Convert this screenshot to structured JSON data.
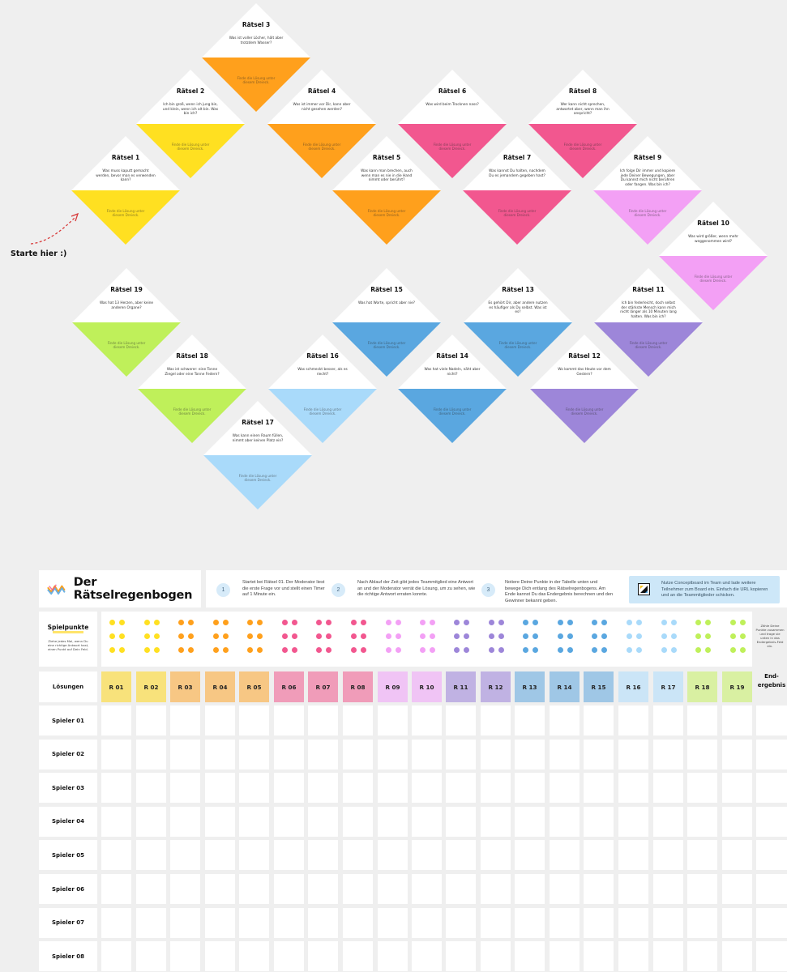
{
  "puzzles": [
    {
      "title": "Rätsel 1",
      "question": "Was muss kaputt gemacht werden, bevor man es verwenden kann?",
      "hint": "Finde die Lösung unter diesem Dreieck.",
      "color": "#ffe021"
    },
    {
      "title": "Rätsel 2",
      "question": "Ich bin groß, wenn ich jung bin, und klein, wenn ich alt bin. Was bin ich?",
      "hint": "Finde die Lösung unter diesem Dreieck.",
      "color": "#ffe021"
    },
    {
      "title": "Rätsel 3",
      "question": "Was ist voller Löcher, hält aber trotzdem Wasser?",
      "hint": "Finde die Lösung unter diesem Dreieck.",
      "color": "#ffa01c"
    },
    {
      "title": "Rätsel 4",
      "question": "Was ist immer vor Dir, kann aber nicht gesehen werden?",
      "hint": "Finde die Lösung unter diesem Dreieck.",
      "color": "#ffa01c"
    },
    {
      "title": "Rätsel 5",
      "question": "Was kann man brechen, auch wenn man es nie in die Hand nimmt oder berührt?",
      "hint": "Finde die Lösung unter diesem Dreieck.",
      "color": "#ffa01c"
    },
    {
      "title": "Rätsel 6",
      "question": "Was wird beim Trocknen nass?",
      "hint": "Finde die Lösung unter diesem Dreieck.",
      "color": "#f2578f"
    },
    {
      "title": "Rätsel 7",
      "question": "Was kannst Du halten, nachdem Du es jemandem gegeben hast?",
      "hint": "Finde die Lösung unter diesem Dreieck.",
      "color": "#f2578f"
    },
    {
      "title": "Rätsel 8",
      "question": "Wer kann nicht sprechen, antwortet aber, wenn man ihn anspricht?",
      "hint": "Finde die Lösung unter diesem Dreieck.",
      "color": "#f2578f"
    },
    {
      "title": "Rätsel 9",
      "question": "Ich folge Dir immer und kopiere jede Deiner Bewegungen, aber Du kannst mich nicht berühren oder fangen. Was bin ich?",
      "hint": "Finde die Lösung unter diesem Dreieck.",
      "color": "#f3a0f5"
    },
    {
      "title": "Rätsel 10",
      "question": "Was wird größer, wenn mehr weggenommen wird?",
      "hint": "Finde die Lösung unter diesem Dreieck.",
      "color": "#f3a0f5"
    },
    {
      "title": "Rätsel 11",
      "question": "Ich bin federleicht, doch selbst der stärkste Mensch kann mich nicht länger als 10 Minuten lang halten. Was bin ich?",
      "hint": "Finde die Lösung unter diesem Dreieck.",
      "color": "#9d86d9"
    },
    {
      "title": "Rätsel 12",
      "question": "Wo kommt das Heute vor dem Gestern?",
      "hint": "Finde die Lösung unter diesem Dreieck.",
      "color": "#9d86d9"
    },
    {
      "title": "Rätsel 13",
      "question": "Es gehört Dir, aber andere nutzen es häufiger als Du selbst. Was ist es?",
      "hint": "Finde die Lösung unter diesem Dreieck.",
      "color": "#5aa7e0"
    },
    {
      "title": "Rätsel 14",
      "question": "Was hat viele Nadeln, näht aber nicht?",
      "hint": "Finde die Lösung unter diesem Dreieck.",
      "color": "#5aa7e0"
    },
    {
      "title": "Rätsel 15",
      "question": "Was hat Worte, spricht aber nie?",
      "hint": "Finde die Lösung unter diesem Dreieck.",
      "color": "#5aa7e0"
    },
    {
      "title": "Rätsel 16",
      "question": "Was schmeckt besser, als es riecht?",
      "hint": "Finde die Lösung unter diesem Dreieck.",
      "color": "#a9dafa"
    },
    {
      "title": "Rätsel 17",
      "question": "Was kann einen Raum füllen, nimmt aber keinen Platz ein?",
      "hint": "Finde die Lösung unter diesem Dreieck.",
      "color": "#a9dafa"
    },
    {
      "title": "Rätsel 18",
      "question": "Was ist schwerer: eine Tonne Ziegel oder eine Tonne Federn?",
      "hint": "Finde die Lösung unter diesem Dreieck.",
      "color": "#bff05a"
    },
    {
      "title": "Rätsel 19",
      "question": "Was hat 13 Herzen, aber keine anderen Organe?",
      "hint": "Finde die Lösung unter diesem Dreieck.",
      "color": "#bff05a"
    }
  ],
  "start_label": "Starte hier :)",
  "title": "Der Rätselregenbogen",
  "steps": [
    {
      "num": "1",
      "text": "Startet bei Rätsel 01. Der Moderator liest die erste Frage vor und stellt einen Timer auf 1 Minute ein."
    },
    {
      "num": "2",
      "text": "Nach Ablauf der Zeit gibt jedes Teammitglied eine Antwort an und der Moderator verrät die Lösung, um zu sehen, wie die richtige Antwort erraten konnte."
    },
    {
      "num": "3",
      "text": "Notiere Deine Punkte in der Tabelle unten und bewege Dich entlang des Rätselregenbogens. Am Ende kannst Du das Endergebnis berechnen und den Gewinner bekannt geben."
    }
  ],
  "share_text": "Nutze Conceptboard im Team und lade weitere Teilnehmer zum Board ein. Einfach die URL kopieren und an die Teammitglieder schicken.",
  "points": {
    "title": "Spielpunkte",
    "description": "Ziehe jedes Mal, wenn Du eine richtige Antwort hast, einen Punkt auf Dein Feld.",
    "note": "Zähle Deine Punkte zusammen und trage sie unten in das Endergebnis-Feld ein.",
    "colors": [
      "#ffe021",
      "#ffe021",
      "#ffa01c",
      "#ffa01c",
      "#ffa01c",
      "#f2578f",
      "#f2578f",
      "#f2578f",
      "#f3a0f5",
      "#f3a0f5",
      "#9d86d9",
      "#9d86d9",
      "#5aa7e0",
      "#5aa7e0",
      "#5aa7e0",
      "#a9dafa",
      "#a9dafa",
      "#bff05a",
      "#bff05a"
    ]
  },
  "table": {
    "corner_label": "Lösungen",
    "end_label": "End-ergebnis",
    "columns": [
      {
        "label": "R 01",
        "color": "#f8e27b"
      },
      {
        "label": "R 02",
        "color": "#f8e27b"
      },
      {
        "label": "R 03",
        "color": "#f7c784"
      },
      {
        "label": "R 04",
        "color": "#f7c784"
      },
      {
        "label": "R 05",
        "color": "#f7c784"
      },
      {
        "label": "R 06",
        "color": "#f09cb9"
      },
      {
        "label": "R 07",
        "color": "#f09cb9"
      },
      {
        "label": "R 08",
        "color": "#f09cb9"
      },
      {
        "label": "R 09",
        "color": "#f0c4f5"
      },
      {
        "label": "R 10",
        "color": "#f0c4f5"
      },
      {
        "label": "R 11",
        "color": "#c0b2e3"
      },
      {
        "label": "R 12",
        "color": "#c0b2e3"
      },
      {
        "label": "R 13",
        "color": "#9fc7e6"
      },
      {
        "label": "R 14",
        "color": "#9fc7e6"
      },
      {
        "label": "R 15",
        "color": "#9fc7e6"
      },
      {
        "label": "R 16",
        "color": "#cbe5f7"
      },
      {
        "label": "R 17",
        "color": "#cbe5f7"
      },
      {
        "label": "R 18",
        "color": "#d9f0a2"
      },
      {
        "label": "R 19",
        "color": "#d9f0a2"
      }
    ],
    "players": [
      "Spieler 01",
      "Spieler 02",
      "Spieler 03",
      "Spieler 04",
      "Spieler 05",
      "Spieler 06",
      "Spieler 07",
      "Spieler 08"
    ]
  }
}
